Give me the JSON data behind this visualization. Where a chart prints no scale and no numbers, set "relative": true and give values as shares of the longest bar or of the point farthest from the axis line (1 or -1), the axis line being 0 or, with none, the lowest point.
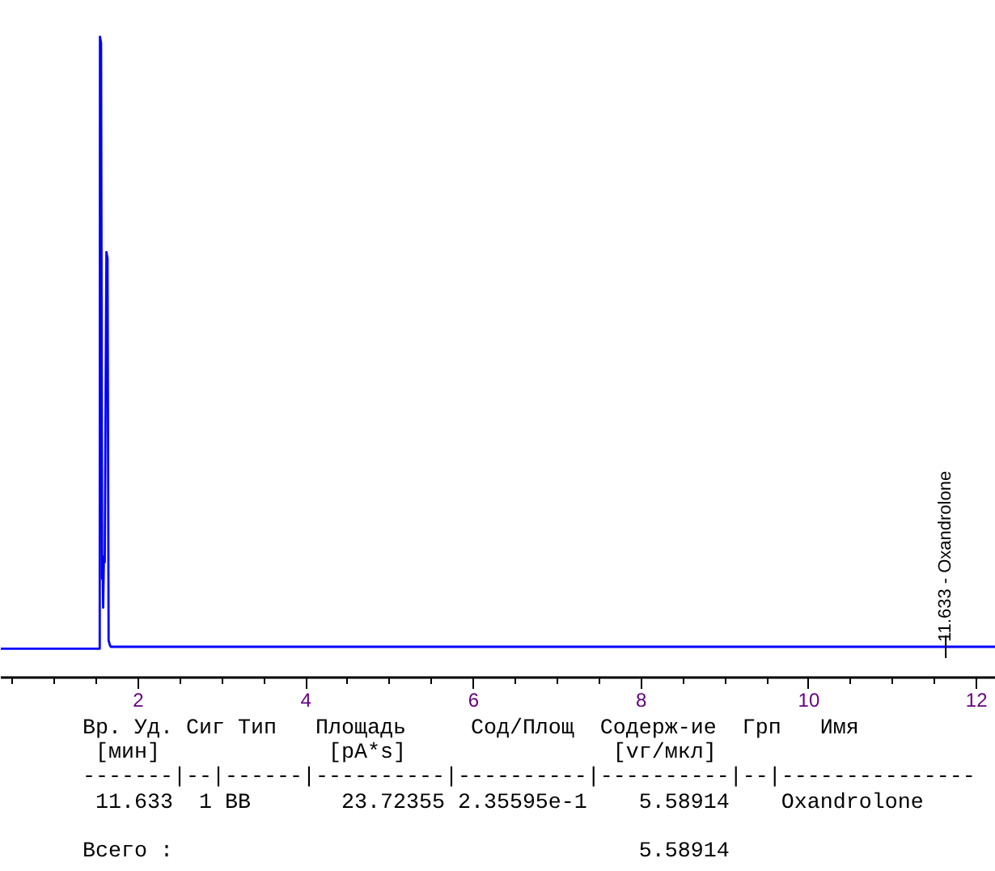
{
  "chart_data": {
    "type": "line",
    "relative": true,
    "xlim": [
      0.36,
      12.23
    ],
    "xticks": [
      {
        "value": 0.5,
        "label": null
      },
      {
        "value": 1,
        "label": null
      },
      {
        "value": 1.5,
        "label": null
      },
      2,
      {
        "value": 2.5,
        "label": null
      },
      {
        "value": 3,
        "label": null
      },
      {
        "value": 3.5,
        "label": null
      },
      4,
      {
        "value": 4.5,
        "label": null
      },
      {
        "value": 5,
        "label": null
      },
      {
        "value": 5.5,
        "label": null
      },
      6,
      {
        "value": 6.5,
        "label": null
      },
      {
        "value": 7,
        "label": null
      },
      {
        "value": 7.5,
        "label": null
      },
      8,
      {
        "value": 8.5,
        "label": null
      },
      {
        "value": 9,
        "label": null
      },
      {
        "value": 9.5,
        "label": null
      },
      10,
      {
        "value": 10.5,
        "label": null
      },
      {
        "value": 11,
        "label": null
      },
      {
        "value": 11.5,
        "label": null
      },
      12
    ],
    "series": [
      {
        "color": "#0000ff",
        "x": [
          0.36,
          1.54,
          1.543,
          1.556,
          1.569,
          1.575,
          1.581,
          1.59,
          1.6,
          1.62,
          1.633,
          1.646,
          1.66,
          1.672,
          12.23
        ],
        "values": [
          0.045,
          0.045,
          1.0,
          0.99,
          0.154,
          0.18,
          0.109,
          0.189,
          0.18,
          0.664,
          0.654,
          0.058,
          0.051,
          0.048,
          0.048
        ]
      }
    ],
    "annotations": [
      {
        "text": "11.633 - Oxandrolone",
        "x": 11.633,
        "y": 0.048
      },
      "Вр. Уд. Сиг Тип   Площадь     Сод/Площ  Содерж-ие  Грп   Имя",
      " [мин]             [pA*s]                [vг/мкл]",
      "-------|--|------|----------|----------|----------|--|---------------",
      " 11.633  1 BB       23.72355 2.35595e-1    5.58914    Oxandrolone",
      "Всего :                                    5.58914"
    ]
  }
}
